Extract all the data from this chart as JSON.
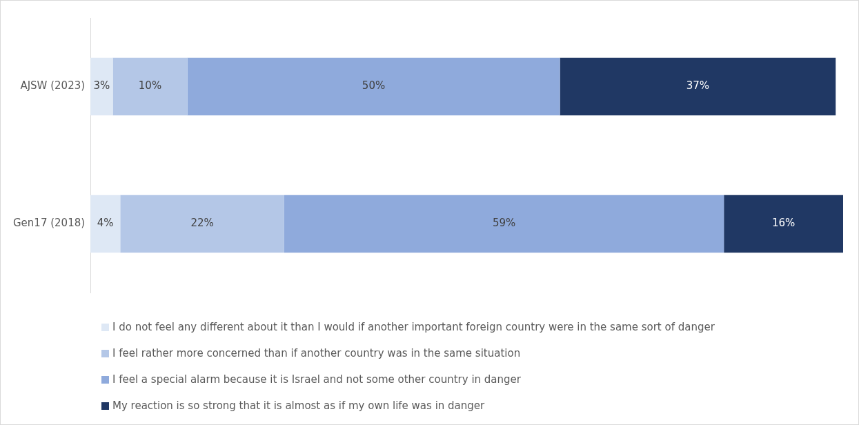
{
  "chart_data": {
    "type": "bar",
    "orientation": "horizontal",
    "stacked": true,
    "legend": "bottom",
    "categories": [
      "AJSW (2023)",
      "Gen17 (2018)"
    ],
    "series": [
      {
        "name": "I do not feel any different about it than I would if another important foreign country were in the same sort of danger",
        "color": "#dee8f5",
        "values": [
          3,
          4
        ],
        "value_labels": [
          "3%",
          "4%"
        ]
      },
      {
        "name": "I feel rather more concerned than if another country was in the same situation",
        "color": "#b4c7e7",
        "values": [
          10,
          22
        ],
        "value_labels": [
          "10%",
          "22%"
        ]
      },
      {
        "name": "I feel a special alarm because it is Israel and not some other country in danger",
        "color": "#8faadc",
        "values": [
          50,
          59
        ],
        "value_labels": [
          "50%",
          "59%"
        ]
      },
      {
        "name": "My reaction is so strong that it is almost as if my own life was in danger",
        "color": "#203864",
        "values": [
          37,
          16
        ],
        "value_labels": [
          "37%",
          "16%"
        ]
      }
    ]
  }
}
